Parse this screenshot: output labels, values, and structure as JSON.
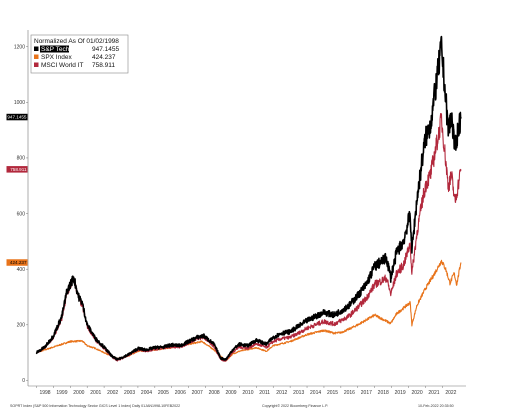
{
  "chart_data": {
    "type": "line",
    "legend": {
      "title": "Normalized As Of 01/02/1998",
      "placement": "top-left"
    },
    "series": [
      {
        "name": "S&P Tech",
        "last_value_text": "947.1455",
        "color": "#000000",
        "data": [
          [
            1998.0,
            100
          ],
          [
            1998.5,
            120
          ],
          [
            1999.0,
            160
          ],
          [
            1999.5,
            230
          ],
          [
            1999.8,
            320
          ],
          [
            2000.2,
            370
          ],
          [
            2000.5,
            300
          ],
          [
            2000.7,
            280
          ],
          [
            2001.0,
            200
          ],
          [
            2001.5,
            150
          ],
          [
            2002.0,
            120
          ],
          [
            2002.5,
            85
          ],
          [
            2002.8,
            75
          ],
          [
            2003.5,
            95
          ],
          [
            2004.0,
            115
          ],
          [
            2004.5,
            110
          ],
          [
            2005.0,
            118
          ],
          [
            2005.5,
            120
          ],
          [
            2006.0,
            128
          ],
          [
            2006.5,
            125
          ],
          [
            2007.0,
            140
          ],
          [
            2007.5,
            155
          ],
          [
            2007.9,
            160
          ],
          [
            2008.5,
            130
          ],
          [
            2008.9,
            80
          ],
          [
            2009.2,
            75
          ],
          [
            2009.6,
            110
          ],
          [
            2010.0,
            130
          ],
          [
            2010.5,
            125
          ],
          [
            2011.0,
            145
          ],
          [
            2011.6,
            130
          ],
          [
            2012.0,
            155
          ],
          [
            2012.5,
            170
          ],
          [
            2013.0,
            175
          ],
          [
            2013.5,
            195
          ],
          [
            2014.0,
            215
          ],
          [
            2014.5,
            230
          ],
          [
            2015.0,
            245
          ],
          [
            2015.6,
            235
          ],
          [
            2016.0,
            250
          ],
          [
            2016.5,
            270
          ],
          [
            2017.0,
            305
          ],
          [
            2017.5,
            345
          ],
          [
            2018.0,
            410
          ],
          [
            2018.7,
            440
          ],
          [
            2018.95,
            370
          ],
          [
            2019.3,
            460
          ],
          [
            2019.7,
            500
          ],
          [
            2020.1,
            600
          ],
          [
            2020.2,
            470
          ],
          [
            2020.5,
            650
          ],
          [
            2020.8,
            790
          ],
          [
            2021.0,
            870
          ],
          [
            2021.3,
            920
          ],
          [
            2021.6,
            1050
          ],
          [
            2021.95,
            1200
          ],
          [
            2022.15,
            1050
          ],
          [
            2022.35,
            900
          ],
          [
            2022.55,
            950
          ],
          [
            2022.75,
            830
          ],
          [
            2022.9,
            890
          ],
          [
            2023.1,
            947
          ]
        ]
      },
      {
        "name": "SPX Index",
        "last_value_text": "424.237",
        "color": "#e8731a",
        "data": [
          [
            1998.0,
            100
          ],
          [
            1999.0,
            120
          ],
          [
            2000.0,
            140
          ],
          [
            2000.7,
            142
          ],
          [
            2001.0,
            125
          ],
          [
            2001.5,
            115
          ],
          [
            2002.0,
            100
          ],
          [
            2002.8,
            78
          ],
          [
            2003.5,
            90
          ],
          [
            2004.0,
            105
          ],
          [
            2005.0,
            110
          ],
          [
            2006.0,
            118
          ],
          [
            2007.0,
            130
          ],
          [
            2007.8,
            140
          ],
          [
            2008.5,
            110
          ],
          [
            2009.2,
            70
          ],
          [
            2009.6,
            95
          ],
          [
            2010.0,
            105
          ],
          [
            2011.0,
            118
          ],
          [
            2011.6,
            105
          ],
          [
            2012.0,
            125
          ],
          [
            2013.0,
            140
          ],
          [
            2014.0,
            165
          ],
          [
            2015.0,
            180
          ],
          [
            2015.6,
            170
          ],
          [
            2016.0,
            172
          ],
          [
            2016.5,
            185
          ],
          [
            2017.0,
            200
          ],
          [
            2018.0,
            235
          ],
          [
            2018.95,
            205
          ],
          [
            2019.3,
            240
          ],
          [
            2020.1,
            280
          ],
          [
            2020.2,
            200
          ],
          [
            2020.5,
            270
          ],
          [
            2021.0,
            330
          ],
          [
            2021.5,
            380
          ],
          [
            2021.95,
            430
          ],
          [
            2022.2,
            400
          ],
          [
            2022.45,
            350
          ],
          [
            2022.7,
            385
          ],
          [
            2022.85,
            345
          ],
          [
            2023.1,
            424
          ]
        ]
      },
      {
        "name": "MSCI World IT",
        "last_value_text": "758.911",
        "color": "#b2283c",
        "data": [
          [
            1998.0,
            100
          ],
          [
            1998.5,
            118
          ],
          [
            1999.0,
            155
          ],
          [
            1999.5,
            220
          ],
          [
            1999.8,
            310
          ],
          [
            2000.2,
            365
          ],
          [
            2000.5,
            295
          ],
          [
            2000.7,
            270
          ],
          [
            2001.0,
            195
          ],
          [
            2001.5,
            145
          ],
          [
            2002.0,
            115
          ],
          [
            2002.5,
            82
          ],
          [
            2002.8,
            72
          ],
          [
            2003.5,
            92
          ],
          [
            2004.0,
            110
          ],
          [
            2004.5,
            106
          ],
          [
            2005.0,
            112
          ],
          [
            2005.5,
            116
          ],
          [
            2006.0,
            122
          ],
          [
            2006.5,
            120
          ],
          [
            2007.0,
            135
          ],
          [
            2007.5,
            150
          ],
          [
            2007.9,
            155
          ],
          [
            2008.5,
            122
          ],
          [
            2008.9,
            75
          ],
          [
            2009.2,
            70
          ],
          [
            2009.6,
            102
          ],
          [
            2010.0,
            120
          ],
          [
            2010.5,
            115
          ],
          [
            2011.0,
            132
          ],
          [
            2011.6,
            118
          ],
          [
            2012.0,
            140
          ],
          [
            2012.5,
            150
          ],
          [
            2013.0,
            155
          ],
          [
            2013.5,
            170
          ],
          [
            2014.0,
            188
          ],
          [
            2014.5,
            200
          ],
          [
            2015.0,
            212
          ],
          [
            2015.6,
            203
          ],
          [
            2016.0,
            215
          ],
          [
            2016.5,
            232
          ],
          [
            2017.0,
            262
          ],
          [
            2017.5,
            295
          ],
          [
            2018.0,
            345
          ],
          [
            2018.7,
            368
          ],
          [
            2018.95,
            310
          ],
          [
            2019.3,
            385
          ],
          [
            2019.7,
            415
          ],
          [
            2020.1,
            490
          ],
          [
            2020.2,
            385
          ],
          [
            2020.5,
            530
          ],
          [
            2020.8,
            640
          ],
          [
            2021.0,
            700
          ],
          [
            2021.3,
            740
          ],
          [
            2021.6,
            830
          ],
          [
            2021.95,
            940
          ],
          [
            2022.15,
            820
          ],
          [
            2022.35,
            700
          ],
          [
            2022.55,
            735
          ],
          [
            2022.75,
            640
          ],
          [
            2022.9,
            690
          ],
          [
            2023.1,
            759
          ]
        ]
      }
    ],
    "x_ticks": [
      "1998",
      "1999",
      "2000",
      "2001",
      "2002",
      "2003",
      "2004",
      "2005",
      "2006",
      "2007",
      "2008",
      "2009",
      "2010",
      "2011",
      "2012",
      "2013",
      "2014",
      "2015",
      "2016",
      "2017",
      "2018",
      "2019",
      "2020",
      "2021",
      "2022"
    ],
    "xlim": [
      1997.5,
      2023.4
    ],
    "y_ticks": [
      "0",
      "200",
      "400",
      "600",
      "800",
      "1000",
      "1200"
    ],
    "ylim": [
      -20,
      1260
    ],
    "grid": false
  },
  "footer": {
    "left": "SOPRT Index (S&P 500 Information Technology Sector GICS Level 1 Index)  Daily 01JAN1998-10FEB2022",
    "center": "Copyright© 2022 Bloomberg Finance L.P.",
    "right": "10-Feb-2022 20:35:50"
  }
}
